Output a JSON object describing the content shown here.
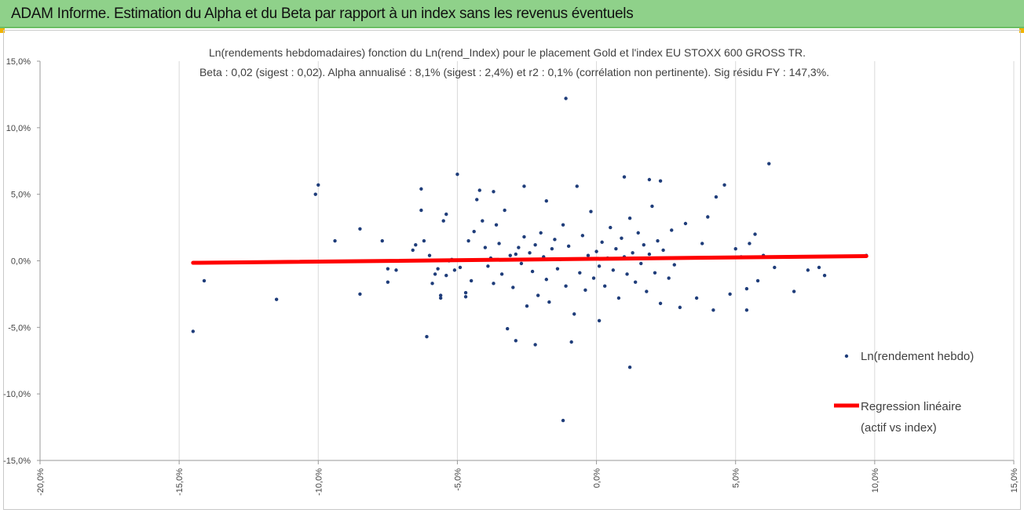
{
  "banner": {
    "title": "ADAM Informe. Estimation du Alpha et du Beta par rapport à un index sans les revenus éventuels"
  },
  "colors": {
    "banner_bg": "#8fd18a",
    "points": "#1f3d7a",
    "regression": "#ff0000",
    "grid": "#d9d9d9"
  },
  "chart_data": {
    "type": "scatter",
    "title_line1": "Ln(rendements hebdomadaires) fonction du Ln(rend_Index) pour le placement Gold et l'index EU STOXX 600 GROSS TR.",
    "title_line2": "Beta : 0,02 (sigest : 0,02). Alpha annualisé : 8,1% (sigest : 2,4%) et r2 : 0,1% (corrélation non pertinente). Sig résidu FY : 147,3%.",
    "xlim": [
      -0.2,
      0.15
    ],
    "ylim": [
      -0.15,
      0.15
    ],
    "x_ticks": [
      -0.2,
      -0.15,
      -0.1,
      -0.05,
      0.0,
      0.05,
      0.1,
      0.15
    ],
    "x_tick_labels": [
      "-20,0%",
      "-15,0%",
      "-10,0%",
      "-5,0%",
      "0,0%",
      "5,0%",
      "10,0%",
      "15,0%"
    ],
    "y_ticks": [
      0.15,
      0.1,
      0.05,
      0.0,
      -0.05,
      -0.1,
      -0.15
    ],
    "y_tick_labels": [
      "15,0%",
      "10,0%",
      "5,0%",
      "0,0%",
      "-5,0%",
      "-10,0%",
      "-15,0%"
    ],
    "grid": "vertical",
    "legend": {
      "position": "right",
      "entries": [
        {
          "label": "Ln(rendement hebdo)",
          "kind": "marker"
        },
        {
          "label_line1": "Regression linéaire",
          "label_line2": "(actif vs index)",
          "kind": "line"
        }
      ]
    },
    "series": [
      {
        "name": "Ln(rendement hebdo)",
        "kind": "scatter",
        "points": [
          [
            -0.145,
            -0.053
          ],
          [
            -0.141,
            -0.015
          ],
          [
            -0.115,
            -0.029
          ],
          [
            -0.101,
            0.05
          ],
          [
            -0.1,
            0.057
          ],
          [
            -0.094,
            0.015
          ],
          [
            -0.085,
            0.024
          ],
          [
            -0.085,
            -0.025
          ],
          [
            -0.077,
            0.015
          ],
          [
            -0.075,
            -0.016
          ],
          [
            -0.075,
            -0.006
          ],
          [
            -0.072,
            -0.007
          ],
          [
            -0.066,
            0.008
          ],
          [
            -0.065,
            0.012
          ],
          [
            -0.063,
            0.038
          ],
          [
            -0.063,
            0.054
          ],
          [
            -0.062,
            0.015
          ],
          [
            -0.06,
            0.004
          ],
          [
            -0.061,
            -0.057
          ],
          [
            -0.059,
            -0.017
          ],
          [
            -0.058,
            -0.01
          ],
          [
            -0.057,
            -0.006
          ],
          [
            -0.056,
            -0.026
          ],
          [
            -0.056,
            -0.028
          ],
          [
            -0.055,
            0.03
          ],
          [
            -0.054,
            0.035
          ],
          [
            -0.054,
            -0.011
          ],
          [
            -0.053,
            0.0
          ],
          [
            -0.052,
            0.001
          ],
          [
            -0.051,
            -0.007
          ],
          [
            -0.05,
            0.065
          ],
          [
            -0.049,
            -0.005
          ],
          [
            -0.047,
            -0.024
          ],
          [
            -0.046,
            0.015
          ],
          [
            -0.045,
            -0.015
          ],
          [
            -0.047,
            -0.027
          ],
          [
            -0.044,
            0.022
          ],
          [
            -0.043,
            0.046
          ],
          [
            -0.042,
            0.053
          ],
          [
            -0.041,
            0.03
          ],
          [
            -0.04,
            0.01
          ],
          [
            -0.039,
            -0.004
          ],
          [
            -0.038,
            0.002
          ],
          [
            -0.037,
            -0.017
          ],
          [
            -0.037,
            0.052
          ],
          [
            -0.036,
            0.027
          ],
          [
            -0.035,
            0.013
          ],
          [
            -0.034,
            -0.01
          ],
          [
            -0.033,
            0.038
          ],
          [
            -0.032,
            -0.051
          ],
          [
            -0.031,
            0.004
          ],
          [
            -0.03,
            -0.02
          ],
          [
            -0.029,
            0.005
          ],
          [
            -0.028,
            0.01
          ],
          [
            -0.027,
            -0.002
          ],
          [
            -0.026,
            0.018
          ],
          [
            -0.025,
            -0.034
          ],
          [
            -0.024,
            0.006
          ],
          [
            -0.023,
            -0.008
          ],
          [
            -0.022,
            0.012
          ],
          [
            -0.021,
            -0.026
          ],
          [
            -0.02,
            0.021
          ],
          [
            -0.019,
            0.003
          ],
          [
            -0.018,
            -0.014
          ],
          [
            -0.017,
            -0.031
          ],
          [
            -0.016,
            0.009
          ],
          [
            -0.015,
            0.016
          ],
          [
            -0.014,
            -0.006
          ],
          [
            -0.013,
            0.001
          ],
          [
            -0.012,
            0.027
          ],
          [
            -0.011,
            -0.019
          ],
          [
            -0.01,
            0.011
          ],
          [
            -0.009,
            -0.061
          ],
          [
            -0.008,
            -0.04
          ],
          [
            -0.007,
            0.056
          ],
          [
            -0.006,
            -0.009
          ],
          [
            -0.005,
            0.019
          ],
          [
            -0.004,
            -0.022
          ],
          [
            -0.003,
            0.004
          ],
          [
            -0.002,
            0.037
          ],
          [
            -0.001,
            -0.013
          ],
          [
            0.0,
            0.007
          ],
          [
            0.001,
            -0.004
          ],
          [
            0.002,
            0.014
          ],
          [
            0.003,
            -0.019
          ],
          [
            0.004,
            0.002
          ],
          [
            0.005,
            0.025
          ],
          [
            0.006,
            -0.007
          ],
          [
            0.007,
            0.009
          ],
          [
            0.008,
            -0.028
          ],
          [
            0.009,
            0.017
          ],
          [
            0.01,
            0.003
          ],
          [
            0.011,
            -0.01
          ],
          [
            0.012,
            0.032
          ],
          [
            0.013,
            0.006
          ],
          [
            0.014,
            -0.016
          ],
          [
            0.015,
            0.021
          ],
          [
            0.016,
            -0.002
          ],
          [
            0.017,
            0.012
          ],
          [
            0.018,
            -0.023
          ],
          [
            0.019,
            0.005
          ],
          [
            0.02,
            0.041
          ],
          [
            0.021,
            -0.009
          ],
          [
            0.022,
            0.015
          ],
          [
            0.023,
            -0.032
          ],
          [
            0.024,
            0.008
          ],
          [
            0.025,
            0.002
          ],
          [
            0.026,
            -0.013
          ],
          [
            0.027,
            0.023
          ],
          [
            0.028,
            -0.003
          ],
          [
            -0.029,
            -0.06
          ],
          [
            -0.026,
            0.056
          ],
          [
            -0.022,
            -0.063
          ],
          [
            -0.018,
            0.045
          ],
          [
            -0.011,
            0.122
          ],
          [
            -0.012,
            -0.12
          ],
          [
            0.001,
            -0.045
          ],
          [
            0.01,
            0.063
          ],
          [
            0.012,
            -0.08
          ],
          [
            0.019,
            0.061
          ],
          [
            0.023,
            0.06
          ],
          [
            0.03,
            -0.035
          ],
          [
            0.032,
            0.028
          ],
          [
            0.036,
            -0.028
          ],
          [
            0.038,
            0.013
          ],
          [
            0.04,
            0.033
          ],
          [
            0.042,
            -0.037
          ],
          [
            0.043,
            0.048
          ],
          [
            0.046,
            0.057
          ],
          [
            0.048,
            -0.025
          ],
          [
            0.05,
            0.009
          ],
          [
            0.052,
            0.003
          ],
          [
            0.054,
            -0.021
          ],
          [
            0.054,
            -0.037
          ],
          [
            0.055,
            0.013
          ],
          [
            0.057,
            0.02
          ],
          [
            0.058,
            -0.015
          ],
          [
            0.06,
            0.004
          ],
          [
            0.062,
            0.073
          ],
          [
            0.064,
            -0.005
          ],
          [
            0.071,
            -0.023
          ],
          [
            0.076,
            -0.007
          ],
          [
            0.08,
            -0.005
          ],
          [
            0.082,
            -0.011
          ],
          [
            0.097,
            0.004
          ]
        ]
      },
      {
        "name": "Regression linéaire (actif vs index)",
        "kind": "line",
        "x": [
          -0.145,
          0.097
        ],
        "y": [
          -0.0015,
          0.0035
        ]
      }
    ]
  }
}
